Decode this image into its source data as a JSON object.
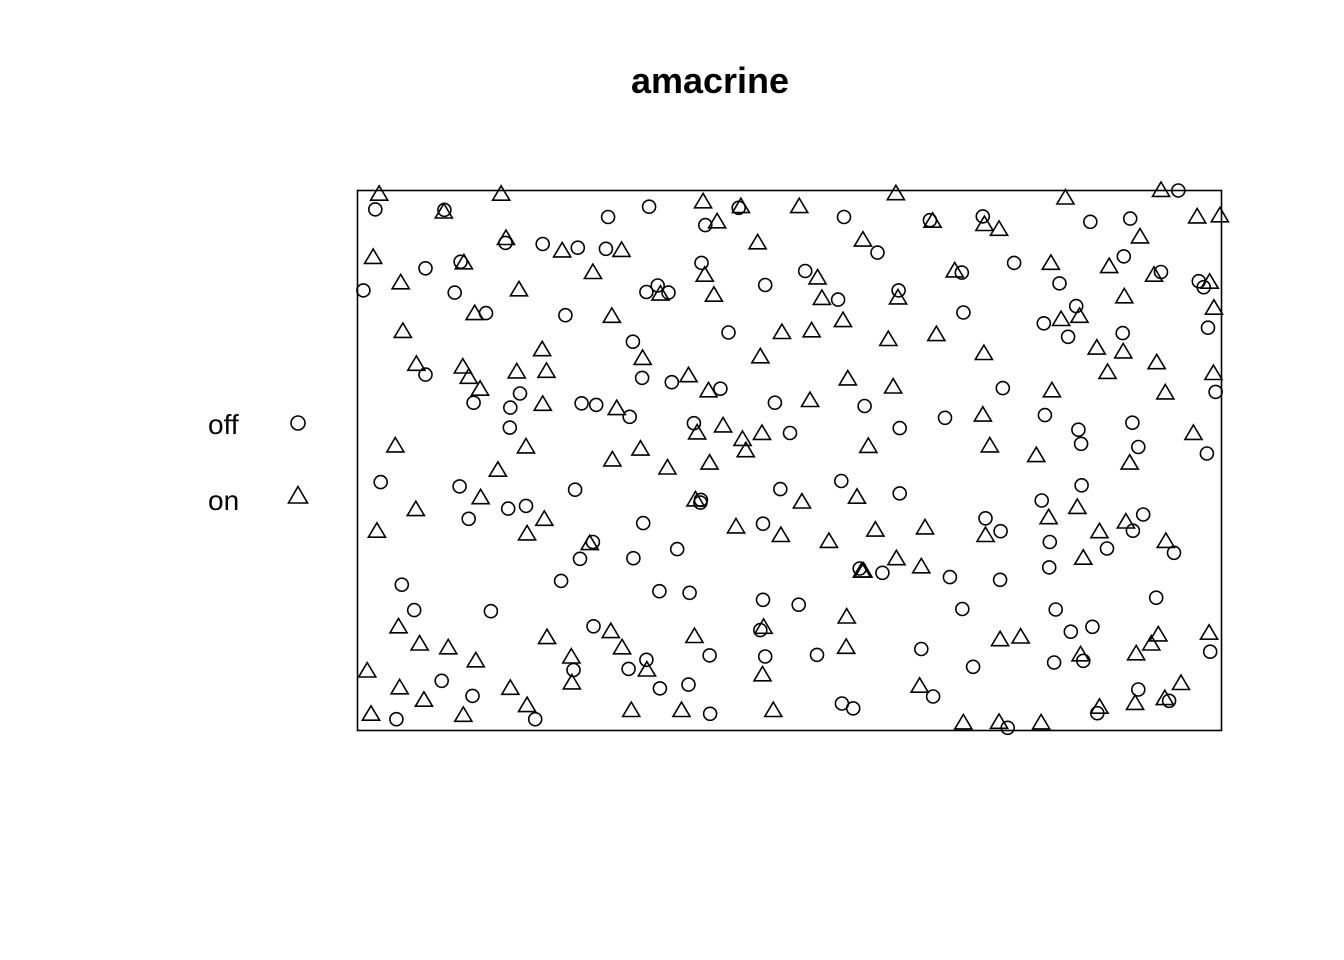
{
  "chart_data": {
    "type": "scatter",
    "title": "amacrine",
    "xlabel": "",
    "ylabel": "",
    "xlim": [
      0,
      1.6
    ],
    "ylim": [
      0,
      1
    ],
    "axes_shown": false,
    "window_frame": true,
    "grid": false,
    "legend_position": "left",
    "series": [
      {
        "name": "off",
        "marker": "circle",
        "points": [
          [
            0.033,
            0.965
          ],
          [
            0.161,
            0.964
          ],
          [
            0.464,
            0.951
          ],
          [
            0.54,
            0.97
          ],
          [
            0.706,
            0.968
          ],
          [
            0.644,
            0.936
          ],
          [
            0.901,
            0.951
          ],
          [
            1.06,
            0.945
          ],
          [
            1.158,
            0.952
          ],
          [
            1.357,
            0.942
          ],
          [
            1.431,
            0.948
          ],
          [
            1.52,
            1.0
          ],
          [
            0.011,
            0.815
          ],
          [
            0.126,
            0.856
          ],
          [
            0.191,
            0.868
          ],
          [
            0.18,
            0.811
          ],
          [
            0.238,
            0.773
          ],
          [
            0.274,
            0.903
          ],
          [
            0.343,
            0.901
          ],
          [
            0.408,
            0.894
          ],
          [
            0.385,
            0.769
          ],
          [
            0.535,
            0.812
          ],
          [
            0.51,
            0.72
          ],
          [
            0.556,
            0.824
          ],
          [
            0.637,
            0.866
          ],
          [
            0.687,
            0.737
          ],
          [
            0.755,
            0.825
          ],
          [
            0.829,
            0.851
          ],
          [
            0.89,
            0.798
          ],
          [
            0.963,
            0.885
          ],
          [
            1.002,
            0.815
          ],
          [
            1.119,
            0.848
          ],
          [
            1.122,
            0.774
          ],
          [
            1.216,
            0.866
          ],
          [
            1.271,
            0.754
          ],
          [
            1.3,
            0.828
          ],
          [
            1.331,
            0.786
          ],
          [
            1.316,
            0.729
          ],
          [
            1.419,
            0.878
          ],
          [
            1.417,
            0.736
          ],
          [
            1.488,
            0.849
          ],
          [
            1.558,
            0.832
          ],
          [
            1.567,
            0.821
          ],
          [
            1.575,
            0.746
          ],
          [
            0.576,
            0.811
          ],
          [
            0.46,
            0.892
          ],
          [
            0.126,
            0.659
          ],
          [
            0.215,
            0.607
          ],
          [
            0.283,
            0.598
          ],
          [
            0.282,
            0.561
          ],
          [
            0.301,
            0.624
          ],
          [
            0.415,
            0.606
          ],
          [
            0.442,
            0.603
          ],
          [
            0.504,
            0.581
          ],
          [
            0.527,
            0.653
          ],
          [
            0.623,
            0.569
          ],
          [
            0.672,
            0.633
          ],
          [
            0.773,
            0.607
          ],
          [
            0.801,
            0.551
          ],
          [
            0.939,
            0.601
          ],
          [
            1.004,
            0.56
          ],
          [
            1.088,
            0.579
          ],
          [
            1.195,
            0.634
          ],
          [
            1.273,
            0.584
          ],
          [
            1.335,
            0.557
          ],
          [
            1.34,
            0.531
          ],
          [
            1.446,
            0.525
          ],
          [
            1.435,
            0.57
          ],
          [
            1.573,
            0.513
          ],
          [
            1.589,
            0.627
          ],
          [
            0.582,
            0.645
          ],
          [
            0.043,
            0.46
          ],
          [
            0.189,
            0.452
          ],
          [
            0.206,
            0.392
          ],
          [
            0.279,
            0.411
          ],
          [
            0.312,
            0.416
          ],
          [
            0.403,
            0.446
          ],
          [
            0.436,
            0.349
          ],
          [
            0.529,
            0.384
          ],
          [
            0.636,
            0.427
          ],
          [
            0.592,
            0.336
          ],
          [
            0.635,
            0.422
          ],
          [
            0.751,
            0.383
          ],
          [
            0.783,
            0.447
          ],
          [
            0.896,
            0.462
          ],
          [
            1.004,
            0.439
          ],
          [
            1.163,
            0.393
          ],
          [
            1.191,
            0.369
          ],
          [
            1.267,
            0.426
          ],
          [
            1.282,
            0.349
          ],
          [
            1.281,
            0.302
          ],
          [
            1.341,
            0.454
          ],
          [
            1.388,
            0.337
          ],
          [
            1.436,
            0.37
          ],
          [
            1.512,
            0.329
          ],
          [
            1.455,
            0.4
          ],
          [
            0.082,
            0.27
          ],
          [
            0.105,
            0.223
          ],
          [
            0.247,
            0.221
          ],
          [
            0.377,
            0.277
          ],
          [
            0.412,
            0.318
          ],
          [
            0.511,
            0.319
          ],
          [
            0.559,
            0.258
          ],
          [
            0.615,
            0.255
          ],
          [
            0.751,
            0.242
          ],
          [
            0.817,
            0.233
          ],
          [
            0.93,
            0.3
          ],
          [
            0.972,
            0.292
          ],
          [
            1.097,
            0.284
          ],
          [
            1.12,
            0.225
          ],
          [
            1.19,
            0.279
          ],
          [
            1.293,
            0.224
          ],
          [
            1.361,
            0.192
          ],
          [
            1.344,
            0.129
          ],
          [
            1.321,
            0.183
          ],
          [
            1.479,
            0.246
          ],
          [
            1.579,
            0.146
          ],
          [
            0.156,
            0.092
          ],
          [
            0.213,
            0.064
          ],
          [
            0.4,
            0.112
          ],
          [
            0.502,
            0.114
          ],
          [
            0.535,
            0.131
          ],
          [
            0.56,
            0.078
          ],
          [
            0.613,
            0.085
          ],
          [
            0.652,
            0.139
          ],
          [
            0.755,
            0.137
          ],
          [
            0.851,
            0.14
          ],
          [
            0.897,
            0.05
          ],
          [
            0.918,
            0.041
          ],
          [
            1.044,
            0.151
          ],
          [
            1.066,
            0.063
          ],
          [
            1.14,
            0.118
          ],
          [
            1.204,
            0.005
          ],
          [
            1.29,
            0.126
          ],
          [
            1.37,
            0.032
          ],
          [
            1.446,
            0.076
          ],
          [
            1.503,
            0.055
          ],
          [
            0.072,
            0.021
          ],
          [
            0.329,
            0.021
          ],
          [
            0.653,
            0.031
          ],
          [
            0.437,
            0.193
          ],
          [
            0.746,
            0.186
          ]
        ]
      },
      {
        "name": "on",
        "marker": "triangle",
        "points": [
          [
            0.04,
            0.992
          ],
          [
            0.266,
            0.992
          ],
          [
            0.16,
            0.959
          ],
          [
            0.64,
            0.978
          ],
          [
            0.71,
            0.969
          ],
          [
            0.818,
            0.969
          ],
          [
            0.666,
            0.941
          ],
          [
            0.997,
            0.993
          ],
          [
            1.065,
            0.942
          ],
          [
            1.161,
            0.936
          ],
          [
            1.311,
            0.985
          ],
          [
            1.449,
            0.913
          ],
          [
            1.488,
            0.999
          ],
          [
            1.555,
            0.95
          ],
          [
            1.597,
            0.952
          ],
          [
            0.029,
            0.875
          ],
          [
            0.08,
            0.828
          ],
          [
            0.197,
            0.865
          ],
          [
            0.275,
            0.91
          ],
          [
            0.299,
            0.815
          ],
          [
            0.379,
            0.887
          ],
          [
            0.436,
            0.847
          ],
          [
            0.489,
            0.888
          ],
          [
            0.643,
            0.842
          ],
          [
            0.66,
            0.805
          ],
          [
            0.741,
            0.902
          ],
          [
            0.852,
            0.837
          ],
          [
            0.936,
            0.907
          ],
          [
            1.001,
            0.8
          ],
          [
            1.106,
            0.85
          ],
          [
            1.188,
            0.927
          ],
          [
            1.284,
            0.864
          ],
          [
            1.392,
            0.858
          ],
          [
            1.42,
            0.802
          ],
          [
            1.475,
            0.842
          ],
          [
            1.578,
            0.829
          ],
          [
            1.586,
            0.781
          ],
          [
            0.841,
            0.739
          ],
          [
            0.86,
            0.799
          ],
          [
            0.084,
            0.738
          ],
          [
            0.217,
            0.771
          ],
          [
            0.195,
            0.672
          ],
          [
            0.35,
            0.664
          ],
          [
            0.342,
            0.704
          ],
          [
            0.471,
            0.766
          ],
          [
            0.561,
            0.807
          ],
          [
            0.746,
            0.691
          ],
          [
            0.786,
            0.736
          ],
          [
            0.899,
            0.758
          ],
          [
            0.983,
            0.723
          ],
          [
            1.072,
            0.732
          ],
          [
            1.16,
            0.697
          ],
          [
            1.303,
            0.76
          ],
          [
            1.337,
            0.766
          ],
          [
            1.369,
            0.707
          ],
          [
            1.418,
            0.7
          ],
          [
            1.48,
            0.68
          ],
          [
            0.07,
            0.526
          ],
          [
            0.109,
            0.677
          ],
          [
            0.206,
            0.653
          ],
          [
            0.227,
            0.631
          ],
          [
            0.295,
            0.663
          ],
          [
            0.343,
            0.603
          ],
          [
            0.48,
            0.595
          ],
          [
            0.524,
            0.52
          ],
          [
            0.528,
            0.688
          ],
          [
            0.613,
            0.656
          ],
          [
            0.65,
            0.628
          ],
          [
            0.677,
            0.563
          ],
          [
            0.719,
            0.517
          ],
          [
            0.838,
            0.61
          ],
          [
            0.908,
            0.65
          ],
          [
            0.946,
            0.525
          ],
          [
            0.992,
            0.635
          ],
          [
            1.158,
            0.583
          ],
          [
            1.171,
            0.526
          ],
          [
            1.257,
            0.508
          ],
          [
            1.286,
            0.628
          ],
          [
            1.389,
            0.662
          ],
          [
            1.43,
            0.494
          ],
          [
            1.496,
            0.624
          ],
          [
            1.548,
            0.549
          ],
          [
            1.585,
            0.66
          ],
          [
            0.036,
            0.368
          ],
          [
            0.108,
            0.408
          ],
          [
            0.228,
            0.43
          ],
          [
            0.26,
            0.481
          ],
          [
            0.312,
            0.524
          ],
          [
            0.314,
            0.363
          ],
          [
            0.346,
            0.39
          ],
          [
            0.43,
            0.345
          ],
          [
            0.472,
            0.5
          ],
          [
            0.574,
            0.485
          ],
          [
            0.629,
            0.55
          ],
          [
            0.713,
            0.538
          ],
          [
            0.749,
            0.549
          ],
          [
            0.784,
            0.36
          ],
          [
            0.873,
            0.349
          ],
          [
            0.959,
            0.37
          ],
          [
            1.044,
            0.302
          ],
          [
            1.051,
            0.374
          ],
          [
            1.163,
            0.36
          ],
          [
            1.28,
            0.393
          ],
          [
            1.344,
            0.318
          ],
          [
            1.374,
            0.367
          ],
          [
            1.333,
            0.412
          ],
          [
            1.497,
            0.349
          ],
          [
            1.423,
            0.385
          ],
          [
            0.925,
            0.431
          ],
          [
            0.823,
            0.422
          ],
          [
            0.652,
            0.494
          ],
          [
            0.626,
            0.426
          ],
          [
            0.701,
            0.376
          ],
          [
            0.998,
            0.317
          ],
          [
            0.934,
            0.294
          ],
          [
            0.937,
            0.294
          ],
          [
            0.018,
            0.109
          ],
          [
            0.078,
            0.078
          ],
          [
            0.115,
            0.159
          ],
          [
            0.123,
            0.055
          ],
          [
            0.168,
            0.152
          ],
          [
            0.219,
            0.128
          ],
          [
            0.283,
            0.077
          ],
          [
            0.314,
            0.045
          ],
          [
            0.351,
            0.171
          ],
          [
            0.396,
            0.135
          ],
          [
            0.397,
            0.087
          ],
          [
            0.49,
            0.152
          ],
          [
            0.469,
            0.182
          ],
          [
            0.536,
            0.111
          ],
          [
            0.624,
            0.173
          ],
          [
            0.752,
            0.19
          ],
          [
            0.75,
            0.102
          ],
          [
            0.905,
            0.153
          ],
          [
            0.906,
            0.209
          ],
          [
            1.041,
            0.081
          ],
          [
            1.19,
            0.167
          ],
          [
            1.228,
            0.172
          ],
          [
            1.339,
            0.139
          ],
          [
            1.442,
            0.141
          ],
          [
            1.47,
            0.159
          ],
          [
            1.483,
            0.176
          ],
          [
            1.577,
            0.179
          ],
          [
            1.525,
            0.086
          ],
          [
            1.495,
            0.058
          ],
          [
            1.44,
            0.049
          ],
          [
            1.374,
            0.042
          ],
          [
            1.266,
            0.013
          ],
          [
            1.188,
            0.014
          ],
          [
            1.122,
            0.013
          ],
          [
            0.77,
            0.036
          ],
          [
            0.6,
            0.036
          ],
          [
            0.507,
            0.036
          ],
          [
            0.025,
            0.029
          ],
          [
            0.196,
            0.027
          ],
          [
            0.076,
            0.191
          ]
        ]
      }
    ]
  }
}
